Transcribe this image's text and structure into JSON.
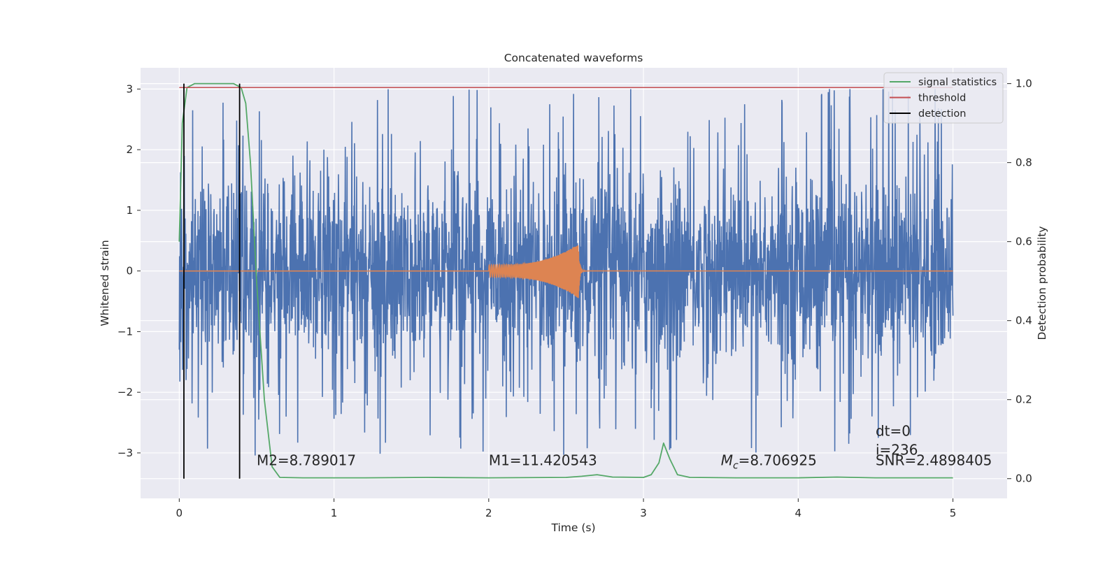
{
  "chart_data": {
    "type": "line",
    "title": "Concatenated waveforms",
    "xlabel": "Time (s)",
    "ylabel": "Whitened strain",
    "ylabel_right": "Detection probability",
    "xlim": [
      -0.25,
      5.35
    ],
    "ylim": [
      -3.75,
      3.35
    ],
    "ylim_right": [
      -0.05,
      1.04
    ],
    "x_ticks": [
      0,
      1,
      2,
      3,
      4,
      5
    ],
    "x_tick_labels": [
      "0",
      "1",
      "2",
      "3",
      "4",
      "5"
    ],
    "y_ticks": [
      -3,
      -2,
      -1,
      0,
      1,
      2,
      3
    ],
    "y_tick_labels": [
      "−3",
      "−2",
      "−1",
      "0",
      "1",
      "2",
      "3"
    ],
    "y2_ticks": [
      0.0,
      0.2,
      0.4,
      0.6,
      0.8,
      1.0
    ],
    "y2_tick_labels": [
      "0.0",
      "0.2",
      "0.4",
      "0.6",
      "0.8",
      "1.0"
    ],
    "grid": true,
    "legend_position": "top-right",
    "legend": [
      {
        "label": "signal statistics",
        "color": "#55a868"
      },
      {
        "label": "threshold",
        "color": "#c44e52"
      },
      {
        "label": "detection",
        "color": "#000000"
      }
    ],
    "series": [
      {
        "role": "whitened-strain-noise",
        "axis": "left",
        "color": "#4c72b0",
        "x_range": [
          0,
          5
        ],
        "amplitude_envelope": 0.85,
        "peak_max": 3.0,
        "peak_min": -3.3
      },
      {
        "role": "injected-chirp",
        "axis": "left",
        "color": "#dd8452",
        "x_range": [
          2.0,
          2.58
        ],
        "amplitude_start": 0.1,
        "amplitude_peak": 0.45,
        "peak_time": 2.58,
        "baseline": 0
      },
      {
        "name": "signal statistics",
        "axis": "right",
        "color": "#55a868",
        "x": [
          0,
          0.02,
          0.05,
          0.1,
          0.2,
          0.35,
          0.4,
          0.43,
          0.46,
          0.5,
          0.55,
          0.6,
          0.65,
          0.8,
          1.2,
          1.6,
          2.0,
          2.5,
          2.6,
          2.7,
          2.8,
          3.0,
          3.05,
          3.1,
          3.13,
          3.17,
          3.22,
          3.3,
          3.6,
          4.0,
          4.25,
          4.5,
          5.0
        ],
        "y": [
          0.6,
          0.9,
          0.99,
          1.0,
          1.0,
          1.0,
          0.99,
          0.95,
          0.8,
          0.5,
          0.2,
          0.03,
          0.003,
          0.002,
          0.002,
          0.003,
          0.002,
          0.003,
          0.006,
          0.01,
          0.004,
          0.003,
          0.01,
          0.04,
          0.09,
          0.05,
          0.01,
          0.003,
          0.002,
          0.002,
          0.004,
          0.002,
          0.002
        ]
      },
      {
        "name": "threshold",
        "axis": "right",
        "color": "#c44e52",
        "x": [
          0,
          5
        ],
        "y": [
          0.99,
          0.99
        ]
      }
    ],
    "detections": [
      0.03,
      0.39
    ],
    "annotations": [
      {
        "text": "M2=8.789017",
        "x": 0.5,
        "y": -3.2
      },
      {
        "text": "M1=11.420543",
        "x": 2.0,
        "y": -3.2
      },
      {
        "text_math": "M",
        "text_sub": "c",
        "text_rest": "=8.706925",
        "x": 3.5,
        "y": -3.2
      },
      {
        "text": "dt=0",
        "x": 4.5,
        "y": -2.72
      },
      {
        "text": "i=236",
        "x": 4.5,
        "y": -3.03
      },
      {
        "text": "SNR=2.4898405",
        "x": 4.5,
        "y": -3.2
      }
    ]
  }
}
